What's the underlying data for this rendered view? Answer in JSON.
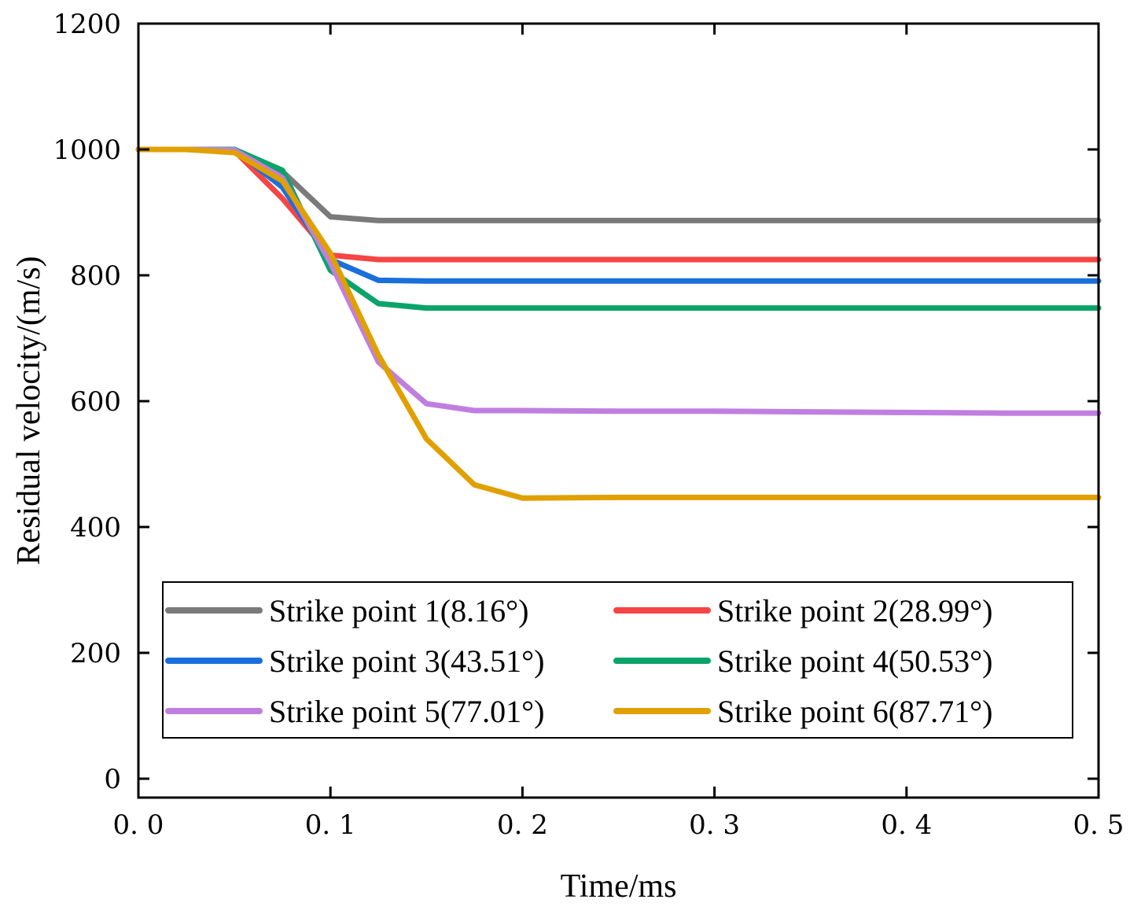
{
  "chart_data": {
    "type": "line",
    "title": "",
    "xlabel": "Time/ms",
    "ylabel": "Residual velocity/(m/s)",
    "xlim": [
      0,
      0.5
    ],
    "ylim": [
      -30,
      1200
    ],
    "xticks": [
      0,
      0.1,
      0.2,
      0.3,
      0.4,
      0.5
    ],
    "xtick_labels": [
      "0. 0",
      "0. 1",
      "0. 2",
      "0. 3",
      "0. 4",
      "0. 5"
    ],
    "yticks": [
      0,
      200,
      400,
      600,
      800,
      1000,
      1200
    ],
    "ytick_labels": [
      "0",
      "200",
      "400",
      "600",
      "800",
      "1000",
      "1200"
    ],
    "grid": false,
    "legend_position": "bottom-center",
    "x": [
      0,
      0.025,
      0.05,
      0.075,
      0.1,
      0.125,
      0.15,
      0.175,
      0.2,
      0.25,
      0.3,
      0.35,
      0.4,
      0.45,
      0.5
    ],
    "series": [
      {
        "name": "Strike point 1(8.16°)",
        "color": "#7a7a7a",
        "values": [
          1000,
          1000,
          1000,
          965,
          893,
          887,
          887,
          887,
          887,
          887,
          887,
          887,
          887,
          887,
          887
        ]
      },
      {
        "name": "Strike point 2(28.99°)",
        "color": "#f54545",
        "values": [
          1000,
          1000,
          998,
          922,
          832,
          825,
          825,
          825,
          825,
          825,
          825,
          825,
          825,
          825,
          825
        ]
      },
      {
        "name": "Strike point 3(43.51°)",
        "color": "#1a6fdc",
        "values": [
          1000,
          1000,
          1000,
          940,
          825,
          792,
          791,
          791,
          791,
          791,
          791,
          791,
          791,
          791,
          791
        ]
      },
      {
        "name": "Strike point 4(50.53°)",
        "color": "#0aa36a",
        "values": [
          1000,
          1000,
          1000,
          967,
          808,
          755,
          748,
          748,
          748,
          748,
          748,
          748,
          748,
          748,
          748
        ]
      },
      {
        "name": "Strike point 5(77.01°)",
        "color": "#c07fe0",
        "values": [
          1000,
          1000,
          999,
          955,
          820,
          662,
          596,
          585,
          585,
          584,
          584,
          583,
          582,
          581,
          581
        ]
      },
      {
        "name": "Strike point 6(87.71°)",
        "color": "#e0a000",
        "values": [
          1000,
          1000,
          995,
          950,
          835,
          673,
          540,
          467,
          446,
          447,
          447,
          447,
          447,
          447,
          447
        ]
      }
    ]
  }
}
